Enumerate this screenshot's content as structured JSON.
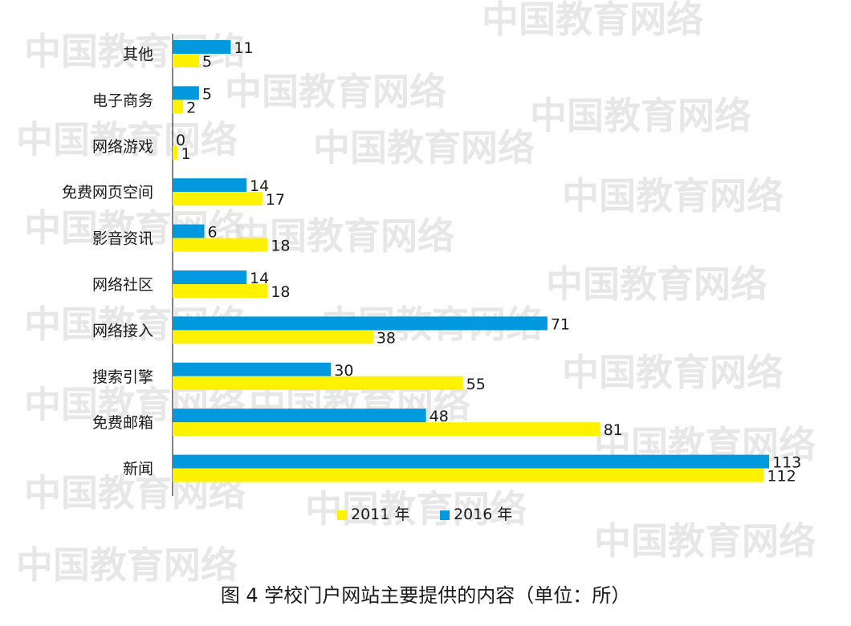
{
  "chart_data": {
    "type": "bar",
    "orientation": "horizontal",
    "categories": [
      "其他",
      "电子商务",
      "网络游戏",
      "免费网页空间",
      "影音资讯",
      "网络社区",
      "网络接入",
      "搜索引擎",
      "免费邮箱",
      "新闻"
    ],
    "series": [
      {
        "name": "2016 年",
        "color": "#0099dd",
        "values": [
          11,
          5,
          0,
          14,
          6,
          14,
          71,
          30,
          48,
          113
        ]
      },
      {
        "name": "2011 年",
        "color": "#fff200",
        "values": [
          5,
          2,
          1,
          17,
          18,
          18,
          38,
          55,
          81,
          112
        ]
      }
    ],
    "legend_order": [
      "2011 年",
      "2016 年"
    ],
    "legend_position": "bottom",
    "xlim": [
      0,
      113
    ],
    "grid": false
  },
  "caption": "图 4 学校门户网站主要提供的内容（单位：所）",
  "watermark_text": "中国教育网络"
}
